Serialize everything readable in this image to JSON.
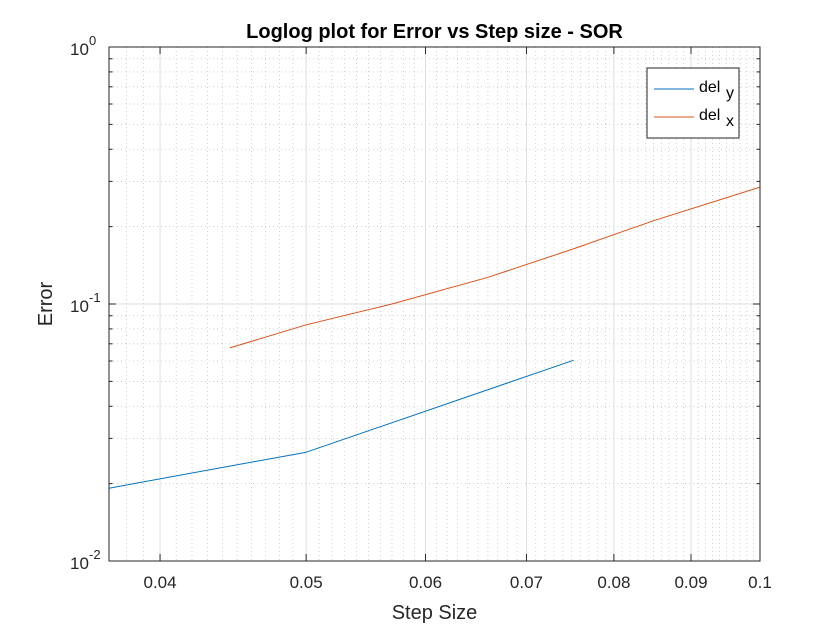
{
  "chart_data": {
    "type": "line",
    "title": "Loglog plot for Error vs Step size - SOR",
    "xlabel": "Step Size",
    "ylabel": "Error",
    "xscale": "log",
    "yscale": "log",
    "xlim": [
      0.037,
      0.1
    ],
    "ylim": [
      0.01,
      1
    ],
    "grid": true,
    "minor_grid": true,
    "legend_position": "top-right",
    "x_ticks": [
      {
        "value": 0.04,
        "label": "0.04"
      },
      {
        "value": 0.05,
        "label": "0.05"
      },
      {
        "value": 0.06,
        "label": "0.06"
      },
      {
        "value": 0.07,
        "label": "0.07"
      },
      {
        "value": 0.08,
        "label": "0.08"
      },
      {
        "value": 0.09,
        "label": "0.09"
      },
      {
        "value": 0.1,
        "label": "0.1"
      }
    ],
    "y_ticks": [
      {
        "value": 0.01,
        "base": "10",
        "exp": "-2"
      },
      {
        "value": 0.1,
        "base": "10",
        "exp": "-1"
      },
      {
        "value": 1,
        "base": "10",
        "exp": "0"
      }
    ],
    "series": [
      {
        "name": "del",
        "name_subscript": "y",
        "color": "#0072BD",
        "x": [
          0.037,
          0.05,
          0.0752
        ],
        "y": [
          0.0192,
          0.0265,
          0.0604
        ]
      },
      {
        "name": "del",
        "name_subscript": "x",
        "color": "#D95319",
        "x": [
          0.0445,
          0.05,
          0.057,
          0.066,
          0.075,
          0.085,
          0.1
        ],
        "y": [
          0.0675,
          0.083,
          0.1,
          0.127,
          0.163,
          0.211,
          0.285
        ]
      }
    ]
  }
}
